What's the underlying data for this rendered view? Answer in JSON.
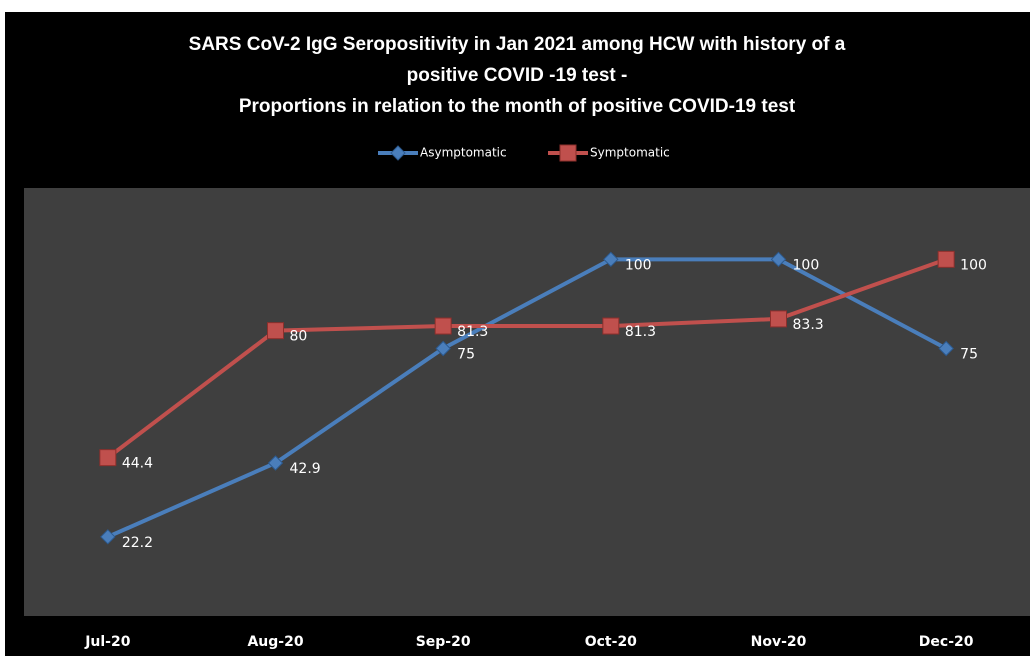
{
  "chart_data": {
    "type": "line",
    "title": [
      "SARS CoV-2 IgG Seropositivity in Jan 2021 among HCW with history of a",
      "positive COVID -19 test -",
      "Proportions in relation to the month of positive COVID-19 test"
    ],
    "categories": [
      "Jul-20",
      "Aug-20",
      "Sep-20",
      "Oct-20",
      "Nov-20",
      "Dec-20"
    ],
    "series": [
      {
        "name": "Asymptomatic",
        "color": "#4a7ebb",
        "marker": "diamond",
        "values": [
          22.2,
          42.9,
          75,
          100,
          100,
          75
        ]
      },
      {
        "name": "Symptomatic",
        "color": "#c0504d",
        "marker": "square",
        "values": [
          44.4,
          80,
          81.3,
          81.3,
          83.3,
          100
        ]
      }
    ],
    "ylim": [
      0,
      120
    ],
    "grid": false,
    "legend": "top"
  }
}
